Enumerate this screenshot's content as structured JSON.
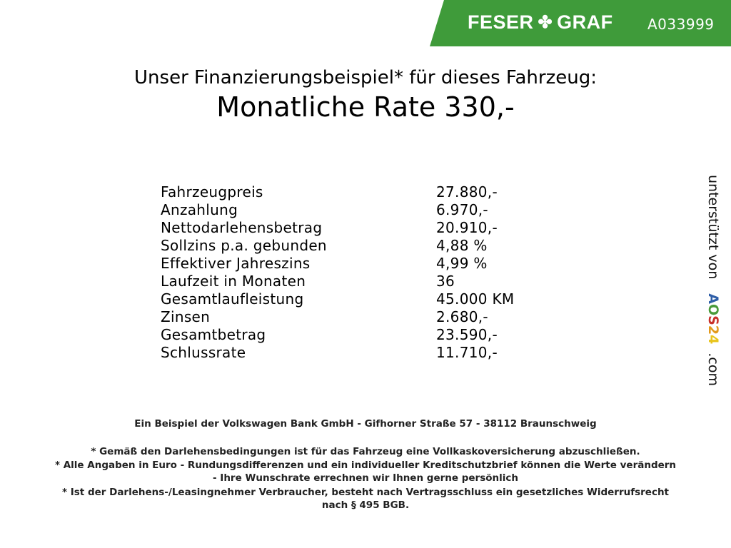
{
  "header": {
    "brand": "FESER",
    "brand2": "GRAF",
    "vehicle_code": "A033999",
    "brand_color": "#3f9b3a"
  },
  "title": "Unser Finanzierungsbeispiel* für dieses Fahrzeug:",
  "monthly_rate": "Monatliche Rate 330,-",
  "rows": [
    {
      "label": "Fahrzeugpreis",
      "value": "27.880,-"
    },
    {
      "label": "Anzahlung",
      "value": "6.970,-"
    },
    {
      "label": "Nettodarlehensbetrag",
      "value": "20.910,-"
    },
    {
      "label": "Sollzins p.a. gebunden",
      "value": "4,88 %"
    },
    {
      "label": "Effektiver Jahreszins",
      "value": "4,99 %"
    },
    {
      "label": "Laufzeit in Monaten",
      "value": "36"
    },
    {
      "label": "Gesamtlaufleistung",
      "value": "45.000 KM"
    },
    {
      "label": "Zinsen",
      "value": "2.680,-"
    },
    {
      "label": "Gesamtbetrag",
      "value": "23.590,-"
    },
    {
      "label": "Schlussrate",
      "value": "11.710,-"
    }
  ],
  "footer": {
    "bank": "Ein Beispiel der Volkswagen Bank GmbH - Gifhorner Straße 57 - 38112 Braunschweig",
    "note1": "* Gemäß den Darlehensbedingungen ist für das Fahrzeug eine Vollkaskoversicherung abzuschließen.",
    "note2a": "* Alle Angaben in Euro - Rundungsdifferenzen und ein individueller Kreditschutzbrief können die Werte verändern",
    "note2b": "- Ihre Wunschrate errechnen wir Ihnen gerne persönlich",
    "note3a": "* Ist der Darlehens-/Leasingnehmer Verbraucher, besteht nach Vertragsschluss ein gesetzliches Widerrufsrecht",
    "note3b": "nach § 495 BGB."
  },
  "side": {
    "prefix": "unterstützt von",
    "logo_letters": [
      "A",
      "O",
      "S",
      "2",
      "4"
    ],
    "logo_colors": [
      "#2f5fa8",
      "#4a9a3a",
      "#c8302a",
      "#e39a1c",
      "#e8c41c"
    ],
    "suffix": ".com"
  }
}
